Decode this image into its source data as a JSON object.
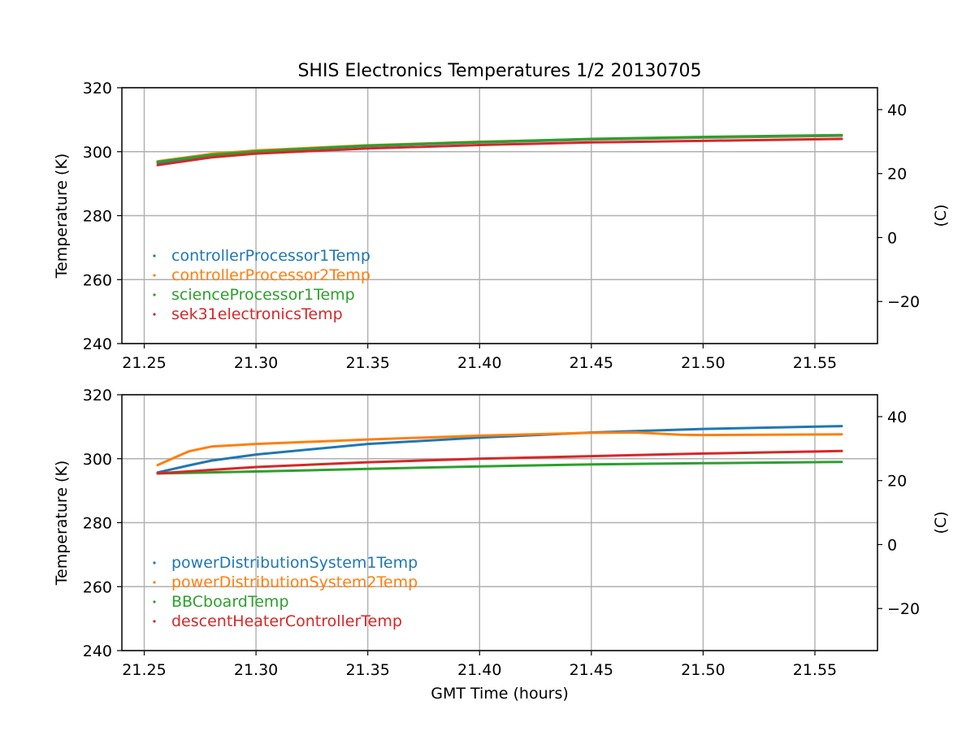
{
  "figure": {
    "title": "SHIS Electronics Temperatures 1/2 20130705",
    "xlabel": "GMT Time (hours)"
  },
  "chart_data": [
    {
      "type": "scatter",
      "ylabel": "Temperature (K)",
      "ylabel_right": "(C)",
      "xlim": [
        21.24,
        21.578
      ],
      "ylim": [
        240,
        320
      ],
      "xticks": [
        "21.25",
        "21.30",
        "21.35",
        "21.40",
        "21.45",
        "21.50",
        "21.55"
      ],
      "yticks": [
        "240",
        "260",
        "280",
        "300",
        "320"
      ],
      "yticks_right": [
        "−20",
        "0",
        "20",
        "40"
      ],
      "grid": true,
      "legend_position": "lower-left",
      "series": [
        {
          "name": "controllerProcessor1Temp",
          "color": "#1f77b4",
          "x": [
            21.256,
            21.28,
            21.3,
            21.35,
            21.4,
            21.45,
            21.5,
            21.562
          ],
          "y": [
            296.5,
            298.9,
            300.0,
            301.8,
            302.9,
            303.8,
            304.4,
            305.0
          ]
        },
        {
          "name": "controllerProcessor2Temp",
          "color": "#ff7f0e",
          "x": [
            21.256,
            21.28,
            21.3,
            21.35,
            21.4,
            21.45,
            21.5,
            21.562
          ],
          "y": [
            297.0,
            299.3,
            300.4,
            302.0,
            303.1,
            303.9,
            304.5,
            305.1
          ]
        },
        {
          "name": "scienceProcessor1Temp",
          "color": "#2ca02c",
          "x": [
            21.256,
            21.28,
            21.3,
            21.35,
            21.4,
            21.45,
            21.5,
            21.562
          ],
          "y": [
            296.8,
            299.0,
            300.1,
            301.9,
            303.0,
            304.0,
            304.6,
            305.2
          ]
        },
        {
          "name": "sek31electronicsTemp",
          "color": "#d62728",
          "x": [
            21.256,
            21.28,
            21.3,
            21.35,
            21.4,
            21.45,
            21.5,
            21.562
          ],
          "y": [
            295.8,
            298.2,
            299.4,
            301.0,
            302.1,
            302.9,
            303.4,
            304.0
          ]
        }
      ]
    },
    {
      "type": "scatter",
      "ylabel": "Temperature (K)",
      "ylabel_right": "(C)",
      "xlabel": "GMT Time (hours)",
      "xlim": [
        21.24,
        21.578
      ],
      "ylim": [
        240,
        320
      ],
      "xticks": [
        "21.25",
        "21.30",
        "21.35",
        "21.40",
        "21.45",
        "21.50",
        "21.55"
      ],
      "yticks": [
        "240",
        "260",
        "280",
        "300",
        "320"
      ],
      "yticks_right": [
        "−20",
        "0",
        "20",
        "40"
      ],
      "grid": true,
      "legend_position": "lower-left",
      "series": [
        {
          "name": "powerDistributionSystem1Temp",
          "color": "#1f77b4",
          "x": [
            21.256,
            21.27,
            21.28,
            21.3,
            21.35,
            21.4,
            21.45,
            21.5,
            21.562
          ],
          "y": [
            295.7,
            297.9,
            299.4,
            301.3,
            304.6,
            306.6,
            308.2,
            309.3,
            310.2
          ]
        },
        {
          "name": "powerDistributionSystem2Temp",
          "color": "#ff7f0e",
          "x": [
            21.256,
            21.265,
            21.27,
            21.28,
            21.3,
            21.35,
            21.4,
            21.45,
            21.47,
            21.49,
            21.5,
            21.562
          ],
          "y": [
            298.0,
            300.8,
            302.3,
            303.8,
            304.6,
            306.0,
            307.2,
            308.1,
            308.2,
            307.5,
            307.4,
            307.6
          ]
        },
        {
          "name": "BBCboardTemp",
          "color": "#2ca02c",
          "x": [
            21.256,
            21.3,
            21.35,
            21.4,
            21.45,
            21.5,
            21.562
          ],
          "y": [
            295.4,
            296.0,
            296.8,
            297.6,
            298.2,
            298.6,
            299.0
          ]
        },
        {
          "name": "descentHeaterControllerTemp",
          "color": "#d62728",
          "x": [
            21.256,
            21.28,
            21.3,
            21.35,
            21.4,
            21.45,
            21.5,
            21.562
          ],
          "y": [
            295.4,
            296.5,
            297.4,
            298.9,
            300.0,
            300.8,
            301.6,
            302.4
          ]
        }
      ]
    }
  ]
}
